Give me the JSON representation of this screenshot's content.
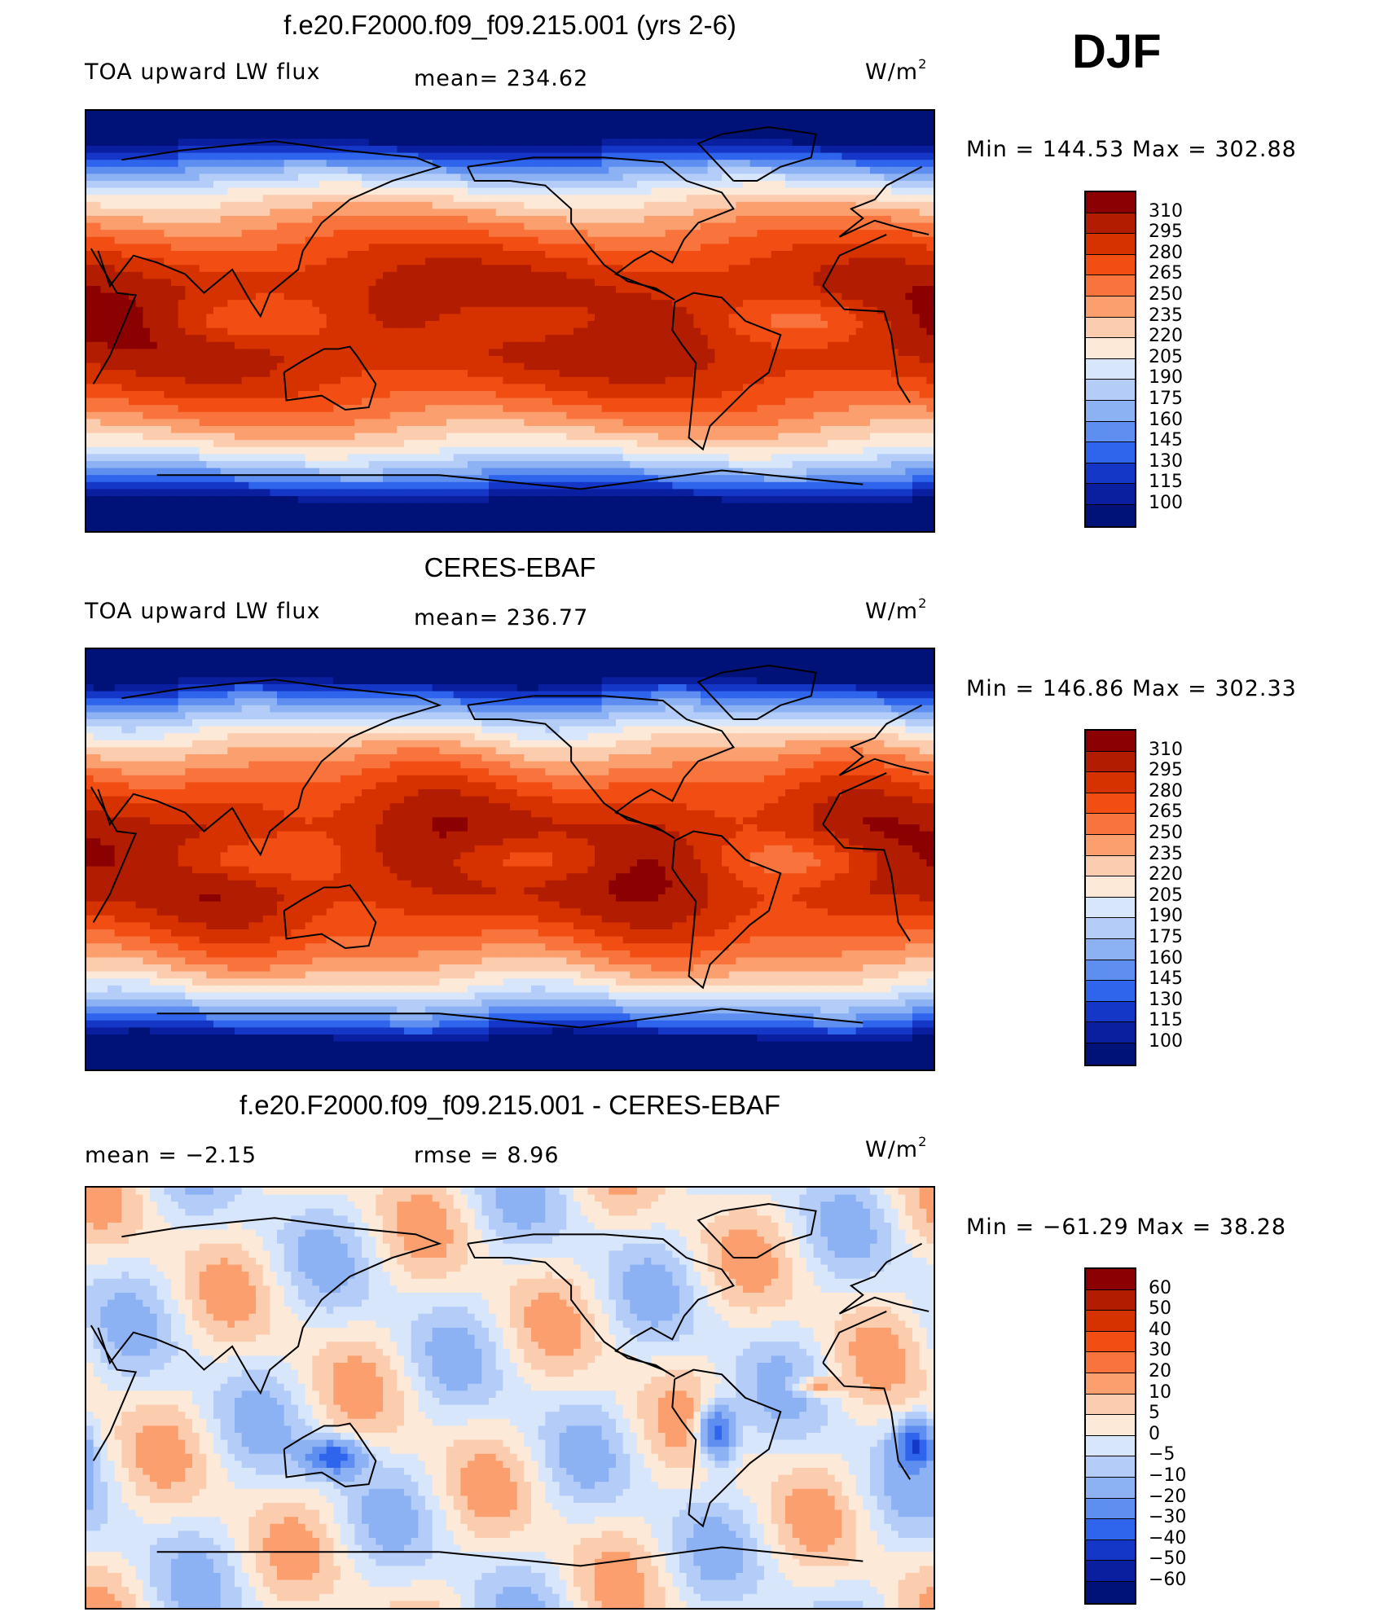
{
  "season": "DJF",
  "panels": [
    {
      "title": "f.e20.F2000.f09_f09.215.001 (yrs 2-6)",
      "left_label": "TOA upward LW flux",
      "mid_label": "mean=  234.62",
      "units": "W/m",
      "units_sup": "2",
      "minmax": "Min  =  144.53  Max  =  302.88",
      "kind": "abs"
    },
    {
      "title": "CERES-EBAF",
      "left_label": "TOA upward LW flux",
      "mid_label": "mean=  236.77",
      "units": "W/m",
      "units_sup": "2",
      "minmax": "Min  =  146.86  Max  =  302.33",
      "kind": "abs2"
    },
    {
      "title": "f.e20.F2000.f09_f09.215.001 - CERES-EBAF",
      "left_label": "mean  =    −2.15",
      "mid_label": "rmse  =     8.96",
      "units": "W/m",
      "units_sup": "2",
      "minmax": "Min  =  −61.29  Max  =    38.28",
      "kind": "diff"
    }
  ],
  "chart_data": [
    {
      "type": "heatmap",
      "title": "f.e20.F2000.f09_f09.215.001 (yrs 2-6)",
      "variable": "TOA upward LW flux",
      "units": "W/m2",
      "mean": 234.62,
      "min": 144.53,
      "max": 302.88,
      "levels": [
        100,
        115,
        130,
        145,
        160,
        175,
        190,
        205,
        220,
        235,
        250,
        265,
        280,
        295,
        310
      ]
    },
    {
      "type": "heatmap",
      "title": "CERES-EBAF",
      "variable": "TOA upward LW flux",
      "units": "W/m2",
      "mean": 236.77,
      "min": 146.86,
      "max": 302.33,
      "levels": [
        100,
        115,
        130,
        145,
        160,
        175,
        190,
        205,
        220,
        235,
        250,
        265,
        280,
        295,
        310
      ]
    },
    {
      "type": "heatmap",
      "title": "f.e20.F2000.f09_f09.215.001 - CERES-EBAF",
      "units": "W/m2",
      "mean": -2.15,
      "rmse": 8.96,
      "min": -61.29,
      "max": 38.28,
      "levels": [
        -60,
        -50,
        -40,
        -30,
        -20,
        -10,
        -5,
        0,
        5,
        10,
        20,
        30,
        40,
        50,
        60
      ]
    }
  ],
  "colorbars": {
    "abs_labels": [
      "310",
      "295",
      "280",
      "265",
      "250",
      "235",
      "220",
      "205",
      "190",
      "175",
      "160",
      "145",
      "130",
      "115",
      "100"
    ],
    "diff_labels": [
      "60",
      "50",
      "40",
      "30",
      "20",
      "10",
      "5",
      "0",
      "−5",
      "−10",
      "−20",
      "−30",
      "−40",
      "−50",
      "−60"
    ],
    "colors": [
      "#8b0000",
      "#b21c00",
      "#d63200",
      "#f24e14",
      "#f8743c",
      "#fb9f6e",
      "#fcccae",
      "#fde9d7",
      "#d8e6fb",
      "#b3cdf8",
      "#8db2f4",
      "#5e8ff0",
      "#2f64ec",
      "#1437c8",
      "#0a1fa0",
      "#001178"
    ]
  }
}
